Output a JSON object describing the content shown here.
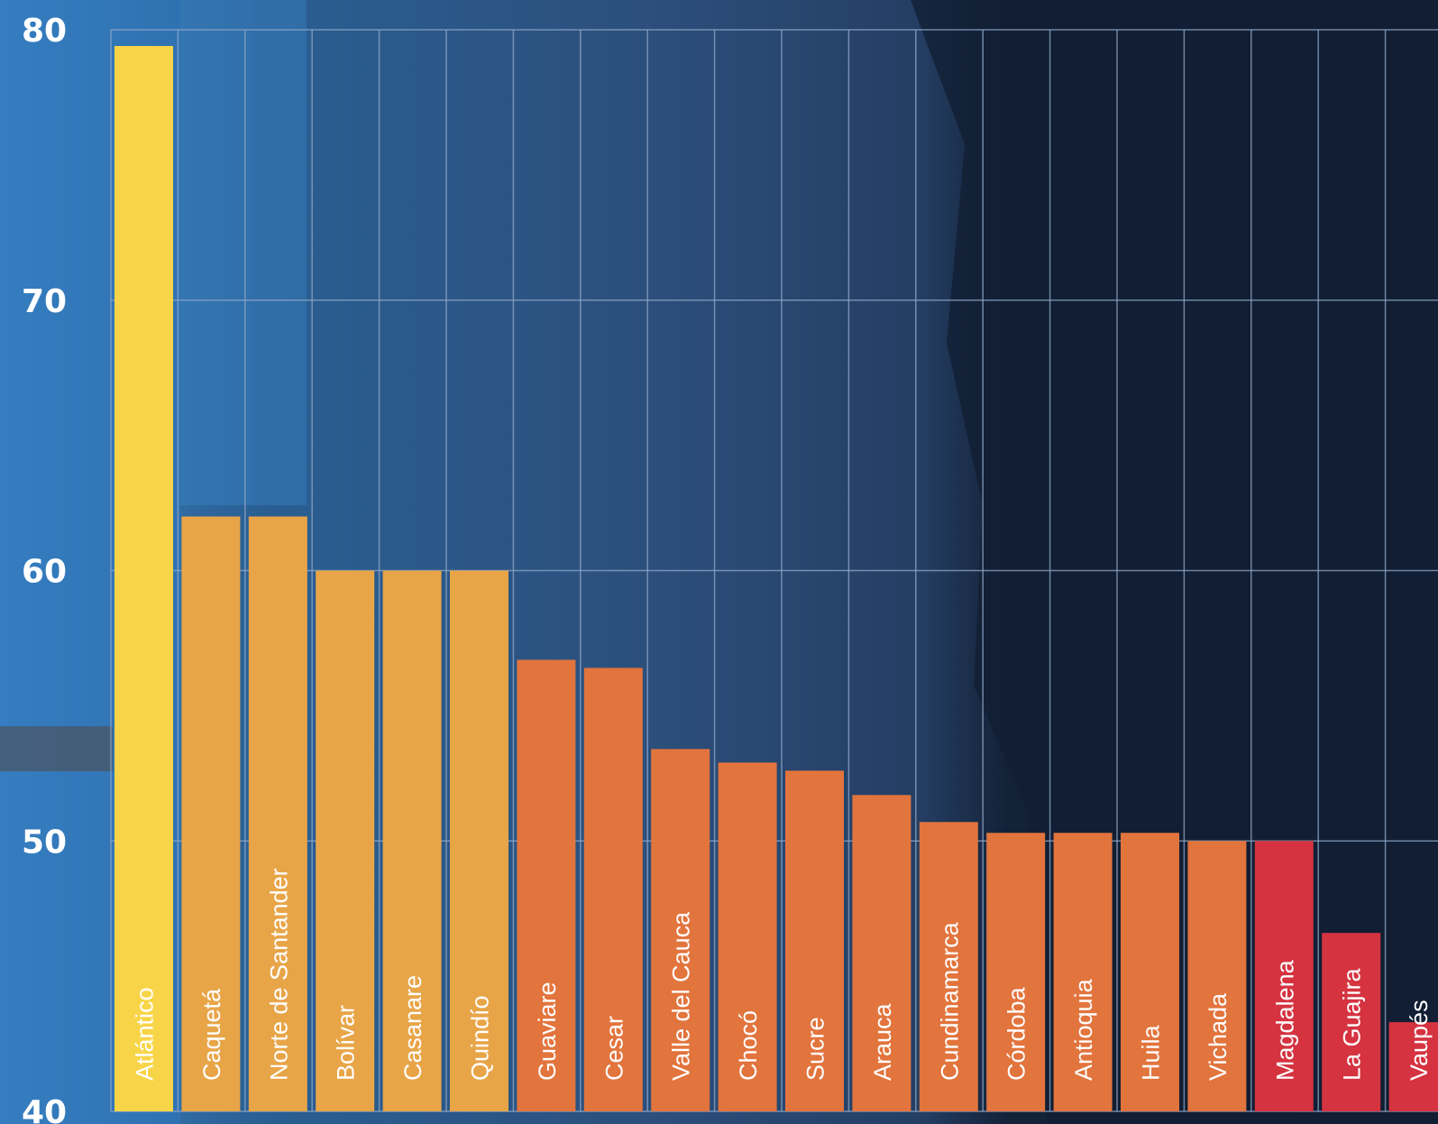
{
  "chart_data": {
    "type": "bar",
    "title": "",
    "xlabel": "",
    "ylabel": "",
    "ylim": [
      40,
      80
    ],
    "yticks": [
      "40",
      "50",
      "60",
      "70",
      "80"
    ],
    "grid": true,
    "categories": [
      "Atlántico",
      "Caquetá",
      "Norte de Santander",
      "Bolívar",
      "Casanare",
      "Quindío",
      "Guaviare",
      "Cesar",
      "Valle del Cauca",
      "Chocó",
      "Sucre",
      "Arauca",
      "Cundinamarca",
      "Córdoba",
      "Antioquia",
      "Huila",
      "Vichada",
      "Magdalena",
      "La Guajira",
      "Vaupés"
    ],
    "values": [
      79.4,
      62.0,
      62.0,
      60.0,
      60.0,
      60.0,
      56.7,
      56.4,
      53.4,
      52.9,
      52.6,
      51.7,
      50.7,
      50.3,
      50.3,
      50.3,
      50.0,
      50.0,
      46.6,
      43.3
    ],
    "colors": {
      "top": "#f8d548",
      "high": "#e8a548",
      "mid": "#e2743d",
      "low": "#d53340",
      "grid": "#8fa8c8",
      "tick_text": "#ffffff"
    },
    "bar_color_groups": [
      "top",
      "high",
      "high",
      "high",
      "high",
      "high",
      "mid",
      "mid",
      "mid",
      "mid",
      "mid",
      "mid",
      "mid",
      "mid",
      "mid",
      "mid",
      "mid",
      "low",
      "low",
      "low"
    ]
  }
}
